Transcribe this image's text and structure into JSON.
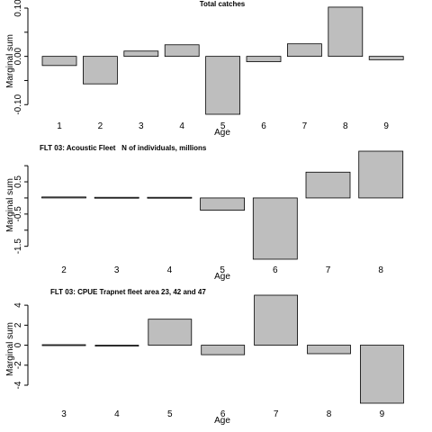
{
  "chart_data": [
    {
      "type": "bar",
      "title": "Total catches",
      "xlabel": "Age",
      "ylabel": "Marginal sum",
      "categories": [
        "1",
        "2",
        "3",
        "4",
        "5",
        "6",
        "7",
        "8",
        "9"
      ],
      "values": [
        -0.019,
        -0.057,
        0.011,
        0.024,
        -0.12,
        -0.011,
        0.026,
        0.102,
        -0.007
      ],
      "ylim": [
        -0.12,
        0.1
      ],
      "yticks": [
        -0.1,
        -0.05,
        0.0,
        0.05,
        0.1
      ],
      "ytick_labels": [
        "-0.10",
        "",
        "0.00",
        "",
        "0.10"
      ]
    },
    {
      "type": "bar",
      "title": "FLT 03: Acoustic Fleet   N of individuals, millions",
      "xlabel": "Age",
      "ylabel": "Marginal sum",
      "categories": [
        "2",
        "3",
        "4",
        "5",
        "6",
        "7",
        "8"
      ],
      "values": [
        0.03,
        0.02,
        0.02,
        -0.38,
        -1.9,
        0.8,
        1.45
      ],
      "ylim": [
        -1.9,
        1.45
      ],
      "yticks": [
        -1.5,
        -1.0,
        -0.5,
        0.0,
        0.5,
        1.0
      ],
      "ytick_labels": [
        "-1.5",
        "",
        "-0.5",
        "",
        "0.5",
        ""
      ]
    },
    {
      "type": "bar",
      "title": "FLT 03: CPUE Trapnet fleet area 23, 42 and 47",
      "xlabel": "Age",
      "ylabel": "Marginal sum",
      "categories": [
        "3",
        "4",
        "5",
        "6",
        "7",
        "8",
        "9"
      ],
      "values": [
        0.05,
        -0.05,
        2.6,
        -0.95,
        5.0,
        -0.85,
        -5.8
      ],
      "ylim": [
        -5.8,
        5.0
      ],
      "yticks": [
        -4,
        -2,
        0,
        2,
        4
      ],
      "ytick_labels": [
        "-4",
        "-2",
        "0",
        "2",
        "4"
      ]
    }
  ],
  "colors": {
    "bar_fill": "#bebebe",
    "bar_stroke": "#000000",
    "text": "#000000"
  }
}
